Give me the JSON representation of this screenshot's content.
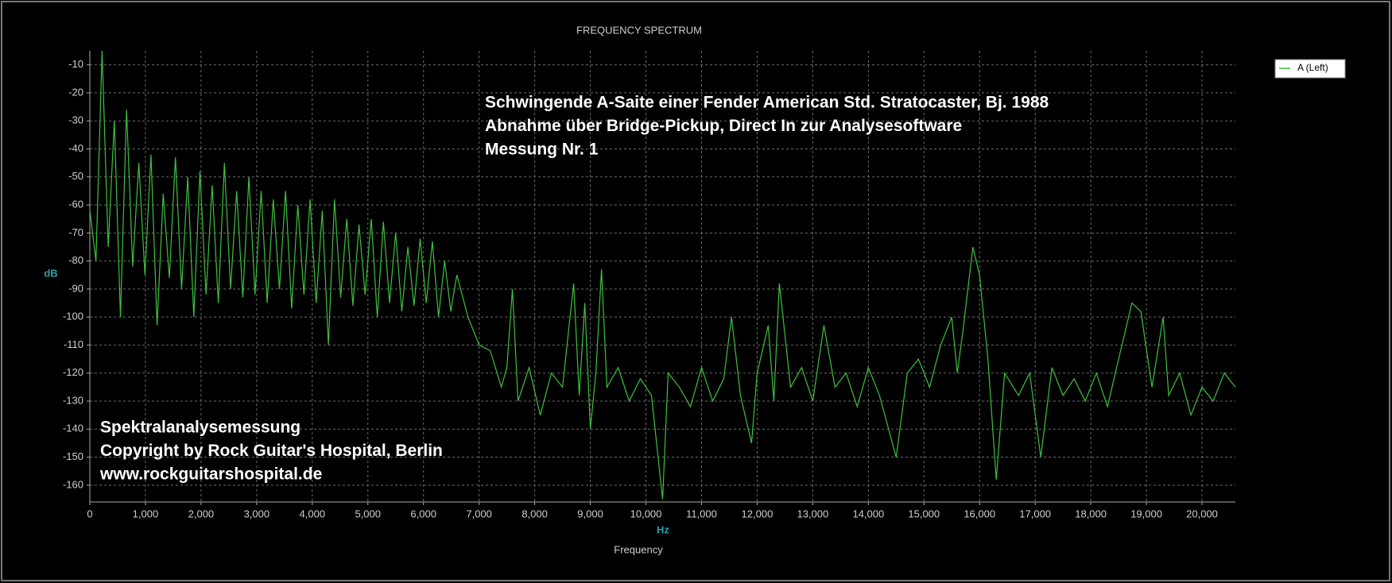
{
  "chart_data": {
    "type": "line",
    "title": "FREQUENCY SPECTRUM",
    "y_label": "dB",
    "x_label": "Hz",
    "x_title": "Frequency",
    "annotations": [
      [
        "Schwingende A-Saite einer Fender American Std. Stratocaster, Bj. 1988",
        "Abnahme über Bridge-Pickup, Direct In zur Analysesoftware",
        "Messung Nr. 1"
      ],
      [
        "Spektralanalysemessung",
        "Copyright by Rock Guitar's Hospital, Berlin",
        "www.rockguitarshospital.de"
      ]
    ],
    "xlim": [
      0,
      20600
    ],
    "ylim": [
      -166,
      -5
    ],
    "xticks": [
      0,
      {
        "value": 1000,
        "label": "1,000"
      },
      {
        "value": 2000,
        "label": "2,000"
      },
      {
        "value": 3000,
        "label": "3,000"
      },
      {
        "value": 4000,
        "label": "4,000"
      },
      {
        "value": 5000,
        "label": "5,000"
      },
      {
        "value": 6000,
        "label": "6,000"
      },
      {
        "value": 7000,
        "label": "7,000"
      },
      {
        "value": 8000,
        "label": "8,000"
      },
      {
        "value": 9000,
        "label": "9,000"
      },
      {
        "value": 10000,
        "label": "10,000"
      },
      {
        "value": 11000,
        "label": "11,000"
      },
      {
        "value": 12000,
        "label": "12,000"
      },
      {
        "value": 13000,
        "label": "13,000"
      },
      {
        "value": 14000,
        "label": "14,000"
      },
      {
        "value": 15000,
        "label": "15,000"
      },
      {
        "value": 16000,
        "label": "16,000"
      },
      {
        "value": 17000,
        "label": "17,000"
      },
      {
        "value": 18000,
        "label": "18,000"
      },
      {
        "value": 19000,
        "label": "19,000"
      },
      {
        "value": 20000,
        "label": "20,000"
      }
    ],
    "yticks": [
      -10,
      -20,
      -30,
      -40,
      -50,
      -60,
      -70,
      -80,
      -90,
      -100,
      -110,
      -120,
      -130,
      -140,
      -150,
      -160
    ],
    "grid": true,
    "legend": "top-right",
    "x": [
      0,
      110,
      220,
      330,
      440,
      550,
      660,
      770,
      880,
      990,
      1100,
      1210,
      1320,
      1430,
      1540,
      1650,
      1760,
      1870,
      1980,
      2090,
      2200,
      2310,
      2420,
      2530,
      2640,
      2750,
      2860,
      2970,
      3080,
      3190,
      3300,
      3410,
      3520,
      3630,
      3740,
      3850,
      3960,
      4070,
      4180,
      4290,
      4400,
      4510,
      4620,
      4730,
      4840,
      4950,
      5060,
      5170,
      5280,
      5390,
      5500,
      5610,
      5720,
      5830,
      5940,
      6050,
      6160,
      6270,
      6380,
      6490,
      6600,
      6800,
      7000,
      7200,
      7400,
      7500,
      7600,
      7700,
      7900,
      8100,
      8300,
      8500,
      8700,
      8800,
      8900,
      9000,
      9100,
      9200,
      9300,
      9500,
      9700,
      9900,
      10100,
      10300,
      10400,
      10600,
      10800,
      11000,
      11200,
      11400,
      11540,
      11700,
      11900,
      12000,
      12200,
      12300,
      12400,
      12600,
      12800,
      13000,
      13200,
      13400,
      13600,
      13800,
      14000,
      14200,
      14500,
      14700,
      14900,
      15100,
      15300,
      15500,
      15600,
      15700,
      15880,
      16000,
      16150,
      16300,
      16450,
      16700,
      16900,
      17100,
      17300,
      17500,
      17700,
      17900,
      18100,
      18300,
      18500,
      18740,
      18900,
      19100,
      19300,
      19400,
      19600,
      19800,
      20000,
      20200,
      20400,
      20600
    ],
    "series": [
      {
        "name": "A (Left)",
        "color": "#3ec13e",
        "values": [
          -62,
          -80,
          -5,
          -75,
          -30,
          -100,
          -26,
          -82,
          -45,
          -85,
          -42,
          -103,
          -56,
          -86,
          -43,
          -90,
          -50,
          -100,
          -48,
          -92,
          -53,
          -95,
          -45,
          -90,
          -55,
          -93,
          -50,
          -92,
          -55,
          -95,
          -58,
          -90,
          -55,
          -97,
          -60,
          -92,
          -58,
          -95,
          -62,
          -110,
          -58,
          -93,
          -65,
          -96,
          -67,
          -92,
          -65,
          -100,
          -66,
          -95,
          -70,
          -98,
          -75,
          -96,
          -72,
          -95,
          -73,
          -100,
          -80,
          -98,
          -85,
          -100,
          -110,
          -112,
          -125,
          -118,
          -90,
          -130,
          -118,
          -135,
          -120,
          -125,
          -88,
          -128,
          -95,
          -140,
          -120,
          -83,
          -125,
          -118,
          -130,
          -122,
          -128,
          -165,
          -120,
          -125,
          -132,
          -118,
          -130,
          -122,
          -100,
          -128,
          -145,
          -120,
          -103,
          -130,
          -88,
          -125,
          -118,
          -130,
          -103,
          -125,
          -120,
          -132,
          -118,
          -128,
          -150,
          -120,
          -115,
          -125,
          -110,
          -100,
          -120,
          -105,
          -75,
          -85,
          -115,
          -158,
          -120,
          -128,
          -120,
          -150,
          -118,
          -128,
          -122,
          -130,
          -120,
          -132,
          -115,
          -95,
          -98,
          -125,
          -100,
          -128,
          -120,
          -135,
          -125,
          -130,
          -120,
          -125
        ]
      }
    ]
  }
}
